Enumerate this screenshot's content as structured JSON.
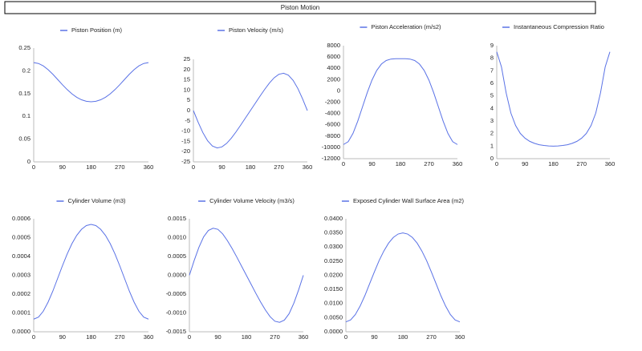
{
  "title": "Piston Motion",
  "chart_data": [
    {
      "type": "line",
      "x": [
        0,
        15,
        30,
        45,
        60,
        75,
        90,
        105,
        120,
        135,
        150,
        165,
        180,
        195,
        210,
        225,
        240,
        255,
        270,
        285,
        300,
        315,
        330,
        345,
        360
      ],
      "xlim": [
        0,
        360
      ],
      "xticks": [
        0,
        90,
        180,
        270,
        360
      ],
      "ylim": [
        0,
        0.25
      ],
      "yticks": [
        0,
        0.05,
        0.1,
        0.15,
        0.2,
        0.25
      ],
      "grid": false,
      "legend": "top",
      "series": [
        {
          "name": "Piston Position (m)",
          "color": "#5a72e6",
          "values": [
            0.218,
            0.2162,
            0.2109,
            0.2027,
            0.1925,
            0.1811,
            0.1696,
            0.1588,
            0.1494,
            0.1419,
            0.1364,
            0.1331,
            0.132,
            0.1331,
            0.1364,
            0.1419,
            0.1494,
            0.1588,
            0.1696,
            0.1811,
            0.1925,
            0.2027,
            0.2109,
            0.2162,
            0.218
          ]
        }
      ]
    },
    {
      "type": "line",
      "x": [
        0,
        15,
        30,
        45,
        60,
        75,
        90,
        105,
        120,
        135,
        150,
        165,
        180,
        195,
        210,
        225,
        240,
        255,
        270,
        285,
        300,
        315,
        330,
        345,
        360
      ],
      "xlim": [
        0,
        360
      ],
      "xticks": [
        0,
        90,
        180,
        270,
        360
      ],
      "ylim": [
        -25,
        25
      ],
      "yticks": [
        -25,
        -20,
        -15,
        -10,
        -5,
        0,
        5,
        10,
        15,
        20,
        25
      ],
      "grid": false,
      "legend": "top",
      "series": [
        {
          "name": "Piston Velocity (m/s)",
          "color": "#5a72e6",
          "values": [
            0,
            -5.69,
            -10.77,
            -14.73,
            -17.25,
            -18.2,
            -17.7,
            -15.99,
            -13.41,
            -10.3,
            -6.93,
            -3.47,
            0,
            3.47,
            6.93,
            10.3,
            13.41,
            15.99,
            17.7,
            18.2,
            17.25,
            14.73,
            10.77,
            5.69,
            0
          ]
        }
      ]
    },
    {
      "type": "line",
      "x": [
        0,
        15,
        30,
        45,
        60,
        75,
        90,
        105,
        120,
        135,
        150,
        165,
        180,
        195,
        210,
        225,
        240,
        255,
        270,
        285,
        300,
        315,
        330,
        345,
        360
      ],
      "xlim": [
        0,
        360
      ],
      "xticks": [
        0,
        90,
        180,
        270,
        360
      ],
      "ylim": [
        -12000,
        8000
      ],
      "yticks": [
        -12000,
        -10000,
        -8000,
        -6000,
        -4000,
        -2000,
        0,
        2000,
        4000,
        6000,
        8000
      ],
      "grid": false,
      "legend": "top",
      "series": [
        {
          "name": "Piston Acceleration (m/s2)",
          "color": "#5a72e6",
          "values": [
            -9500,
            -8986,
            -7532,
            -5374,
            -2850,
            -321,
            1900,
            3612,
            4750,
            5374,
            5632,
            5695,
            5700,
            5695,
            5632,
            5374,
            4750,
            3612,
            1900,
            -321,
            -2850,
            -5374,
            -7532,
            -8986,
            -9500
          ]
        }
      ]
    },
    {
      "type": "line",
      "x": [
        0,
        15,
        30,
        45,
        60,
        75,
        90,
        105,
        120,
        135,
        150,
        165,
        180,
        195,
        210,
        225,
        240,
        255,
        270,
        285,
        300,
        315,
        330,
        345,
        360
      ],
      "xlim": [
        0,
        360
      ],
      "xticks": [
        0,
        90,
        180,
        270,
        360
      ],
      "ylim": [
        0,
        9
      ],
      "yticks": [
        0,
        1,
        2,
        3,
        4,
        5,
        6,
        7,
        8,
        9
      ],
      "grid": false,
      "legend": "top",
      "series": [
        {
          "name": "Instantaneous Compression Ratio",
          "color": "#5a72e6",
          "values": [
            8.51,
            7.31,
            5.23,
            3.63,
            2.64,
            2.01,
            1.63,
            1.38,
            1.22,
            1.11,
            1.05,
            1.01,
            1,
            1.01,
            1.05,
            1.11,
            1.22,
            1.38,
            1.63,
            2.01,
            2.64,
            3.63,
            5.23,
            7.31,
            8.51
          ]
        }
      ]
    },
    {
      "type": "line",
      "x": [
        0,
        15,
        30,
        45,
        60,
        75,
        90,
        105,
        120,
        135,
        150,
        165,
        180,
        195,
        210,
        225,
        240,
        255,
        270,
        285,
        300,
        315,
        330,
        345,
        360
      ],
      "xlim": [
        0,
        360
      ],
      "xticks": [
        0,
        90,
        180,
        270,
        360
      ],
      "ylim": [
        0,
        0.0006
      ],
      "yticks": [
        {
          "value": 0,
          "label": "0.0000"
        },
        {
          "value": 0.0001,
          "label": "0.0001"
        },
        {
          "value": 0.0002,
          "label": "0.0002"
        },
        {
          "value": 0.0003,
          "label": "0.0003"
        },
        {
          "value": 0.0004,
          "label": "0.0004"
        },
        {
          "value": 0.0005,
          "label": "0.0005"
        },
        {
          "value": 0.0006,
          "label": "0.0006"
        }
      ],
      "grid": false,
      "legend": "top",
      "series": [
        {
          "name": "Cylinder Volume (m3)",
          "color": "#5a72e6",
          "values": [
            6.7e-05,
            7.8e-05,
            0.000109,
            0.000157,
            0.000216,
            0.000283,
            0.00035,
            0.000413,
            0.000468,
            0.000512,
            0.000544,
            0.000564,
            0.00057,
            0.000564,
            0.000544,
            0.000512,
            0.000468,
            0.000413,
            0.00035,
            0.000283,
            0.000216,
            0.000157,
            0.000109,
            7.8e-05,
            6.7e-05
          ]
        }
      ]
    },
    {
      "type": "line",
      "x": [
        0,
        15,
        30,
        45,
        60,
        75,
        90,
        105,
        120,
        135,
        150,
        165,
        180,
        195,
        210,
        225,
        240,
        255,
        270,
        285,
        300,
        315,
        330,
        345,
        360
      ],
      "xlim": [
        0,
        360
      ],
      "xticks": [
        0,
        90,
        180,
        270,
        360
      ],
      "ylim": [
        -0.0015,
        0.0015
      ],
      "yticks": [
        {
          "value": -0.0015,
          "label": "-0.0015"
        },
        {
          "value": -0.001,
          "label": "-0.0010"
        },
        {
          "value": -0.0005,
          "label": "-0.0005"
        },
        {
          "value": 0,
          "label": "0.0000"
        },
        {
          "value": 0.0005,
          "label": "0.0005"
        },
        {
          "value": 0.001,
          "label": "0.0010"
        },
        {
          "value": 0.0015,
          "label": "0.0015"
        }
      ],
      "grid": false,
      "legend": "top",
      "series": [
        {
          "name": "Cylinder Volume Velocity (m3/s)",
          "color": "#5a72e6",
          "values": [
            0,
            0.00039,
            0.00074,
            0.00102,
            0.00119,
            0.00125,
            0.00122,
            0.0011,
            0.00092,
            0.00071,
            0.00048,
            0.00024,
            0,
            -0.00024,
            -0.00048,
            -0.00071,
            -0.00092,
            -0.0011,
            -0.00122,
            -0.00125,
            -0.00119,
            -0.00102,
            -0.00074,
            -0.00039,
            0
          ]
        }
      ]
    },
    {
      "type": "line",
      "x": [
        0,
        15,
        30,
        45,
        60,
        75,
        90,
        105,
        120,
        135,
        150,
        165,
        180,
        195,
        210,
        225,
        240,
        255,
        270,
        285,
        300,
        315,
        330,
        345,
        360
      ],
      "xlim": [
        0,
        360
      ],
      "xticks": [
        0,
        90,
        180,
        270,
        360
      ],
      "ylim": [
        0,
        0.04
      ],
      "yticks": [
        {
          "value": 0,
          "label": "0.0000"
        },
        {
          "value": 0.005,
          "label": "0.0050"
        },
        {
          "value": 0.01,
          "label": "0.0100"
        },
        {
          "value": 0.015,
          "label": "0.0150"
        },
        {
          "value": 0.02,
          "label": "0.0200"
        },
        {
          "value": 0.025,
          "label": "0.0250"
        },
        {
          "value": 0.03,
          "label": "0.0300"
        },
        {
          "value": 0.035,
          "label": "0.0350"
        },
        {
          "value": 0.04,
          "label": "0.0400"
        }
      ],
      "grid": false,
      "legend": "top",
      "series": [
        {
          "name": "Exposed Cylinder Wall Surface Area (m2)",
          "color": "#5a72e6",
          "values": [
            0.0035,
            0.0042,
            0.0061,
            0.0091,
            0.0128,
            0.017,
            0.0212,
            0.0252,
            0.0286,
            0.0314,
            0.0334,
            0.0346,
            0.035,
            0.0346,
            0.0334,
            0.0314,
            0.0286,
            0.0252,
            0.0212,
            0.017,
            0.0128,
            0.0091,
            0.0061,
            0.0042,
            0.0035
          ]
        }
      ]
    }
  ]
}
